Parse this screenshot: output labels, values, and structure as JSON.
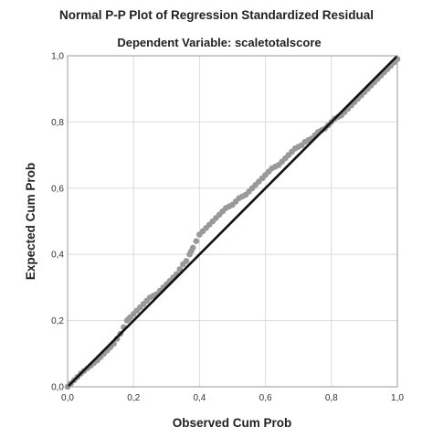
{
  "chart_data": {
    "type": "scatter",
    "title": "Normal P-P Plot of Regression Standardized Residual",
    "subtitle": "Dependent Variable: scaletotalscore",
    "xlabel": "Observed Cum Prob",
    "ylabel": "Expected Cum Prob",
    "xlim": [
      0,
      1
    ],
    "ylim": [
      0,
      1
    ],
    "xticks": [
      "0,0",
      "0,2",
      "0,4",
      "0,6",
      "0,8",
      "1,0"
    ],
    "yticks": [
      "0,0",
      "0,2",
      "0,4",
      "0,6",
      "0,8",
      "1,0"
    ],
    "grid": true,
    "reference_line": {
      "from": [
        0,
        0
      ],
      "to": [
        1,
        1
      ]
    },
    "point_color": "#999999",
    "line_color": "#111111",
    "series": [
      {
        "x": [
          0.0,
          0.01,
          0.02,
          0.03,
          0.04,
          0.05,
          0.06,
          0.07,
          0.08,
          0.09,
          0.1,
          0.11,
          0.12,
          0.13,
          0.14,
          0.15,
          0.16,
          0.17,
          0.18,
          0.185,
          0.19,
          0.2,
          0.21,
          0.22,
          0.23,
          0.24,
          0.25,
          0.26,
          0.27,
          0.28,
          0.29,
          0.3,
          0.31,
          0.32,
          0.33,
          0.34,
          0.35,
          0.36,
          0.37,
          0.375,
          0.38,
          0.39,
          0.4,
          0.41,
          0.42,
          0.43,
          0.44,
          0.45,
          0.46,
          0.47,
          0.48,
          0.49,
          0.5,
          0.51,
          0.52,
          0.53,
          0.54,
          0.55,
          0.56,
          0.57,
          0.58,
          0.59,
          0.6,
          0.61,
          0.62,
          0.63,
          0.64,
          0.65,
          0.66,
          0.67,
          0.68,
          0.69,
          0.7,
          0.71,
          0.72,
          0.73,
          0.74,
          0.75,
          0.76,
          0.77,
          0.78,
          0.79,
          0.8,
          0.81,
          0.82,
          0.83,
          0.84,
          0.85,
          0.86,
          0.87,
          0.88,
          0.89,
          0.9,
          0.91,
          0.92,
          0.93,
          0.94,
          0.95,
          0.96,
          0.97,
          0.98,
          0.99,
          1.0
        ],
        "y": [
          0.0,
          0.01,
          0.02,
          0.03,
          0.04,
          0.048,
          0.056,
          0.064,
          0.072,
          0.08,
          0.09,
          0.1,
          0.11,
          0.12,
          0.13,
          0.145,
          0.16,
          0.18,
          0.2,
          0.205,
          0.21,
          0.22,
          0.23,
          0.24,
          0.25,
          0.26,
          0.27,
          0.275,
          0.28,
          0.29,
          0.3,
          0.31,
          0.32,
          0.33,
          0.34,
          0.355,
          0.37,
          0.38,
          0.4,
          0.41,
          0.42,
          0.44,
          0.46,
          0.47,
          0.48,
          0.49,
          0.5,
          0.51,
          0.52,
          0.53,
          0.54,
          0.545,
          0.55,
          0.56,
          0.57,
          0.575,
          0.58,
          0.59,
          0.6,
          0.61,
          0.62,
          0.63,
          0.64,
          0.65,
          0.66,
          0.665,
          0.67,
          0.68,
          0.69,
          0.7,
          0.71,
          0.72,
          0.725,
          0.73,
          0.74,
          0.745,
          0.75,
          0.76,
          0.77,
          0.775,
          0.78,
          0.79,
          0.8,
          0.81,
          0.815,
          0.82,
          0.83,
          0.84,
          0.85,
          0.86,
          0.87,
          0.88,
          0.89,
          0.9,
          0.91,
          0.92,
          0.93,
          0.94,
          0.95,
          0.96,
          0.97,
          0.98,
          0.99
        ]
      }
    ]
  }
}
